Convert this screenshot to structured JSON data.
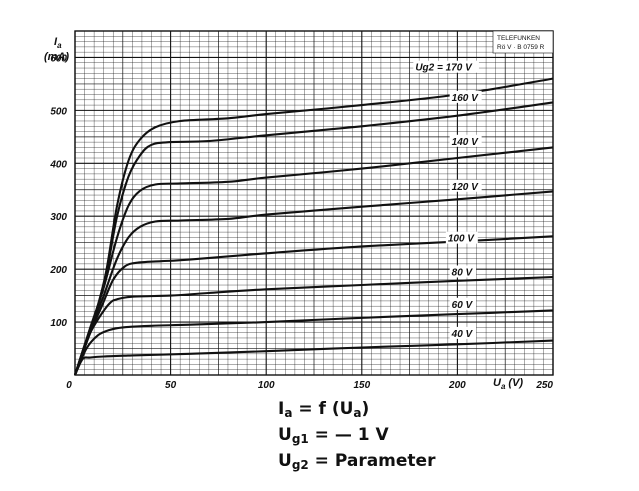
{
  "chart_data": {
    "type": "line",
    "title": "",
    "stamp": [
      "TELEFUNKEN",
      "Rö V · B 0759 R"
    ],
    "xlabel": "U",
    "xlabel_sub": "a",
    "xlabel_unit": "(V)",
    "ylabel": "I",
    "ylabel_sub": "a",
    "ylabel_unit": "(mA)",
    "xlim": [
      0,
      250
    ],
    "ylim": [
      0,
      650
    ],
    "xticks": [
      0,
      50,
      100,
      150,
      200,
      250
    ],
    "yticks": [
      100,
      200,
      300,
      400,
      500,
      600
    ],
    "grid": true,
    "series": [
      {
        "name": "40 V",
        "label_prefix": "",
        "points": [
          [
            0,
            0
          ],
          [
            4,
            30
          ],
          [
            8,
            33
          ],
          [
            15,
            35
          ],
          [
            30,
            37
          ],
          [
            60,
            40
          ],
          [
            100,
            45
          ],
          [
            150,
            52
          ],
          [
            200,
            58
          ],
          [
            250,
            65
          ]
        ]
      },
      {
        "name": "60 V",
        "label_prefix": "",
        "points": [
          [
            0,
            0
          ],
          [
            6,
            50
          ],
          [
            12,
            75
          ],
          [
            18,
            85
          ],
          [
            25,
            90
          ],
          [
            40,
            93
          ],
          [
            60,
            95
          ],
          [
            100,
            100
          ],
          [
            150,
            108
          ],
          [
            200,
            115
          ],
          [
            250,
            122
          ]
        ]
      },
      {
        "name": "80 V",
        "label_prefix": "",
        "points": [
          [
            0,
            0
          ],
          [
            6,
            65
          ],
          [
            12,
            105
          ],
          [
            18,
            135
          ],
          [
            22,
            143
          ],
          [
            30,
            148
          ],
          [
            50,
            150
          ],
          [
            70,
            155
          ],
          [
            100,
            162
          ],
          [
            150,
            170
          ],
          [
            200,
            178
          ],
          [
            250,
            185
          ]
        ]
      },
      {
        "name": "100 V",
        "label_prefix": "",
        "points": [
          [
            0,
            0
          ],
          [
            8,
            80
          ],
          [
            14,
            130
          ],
          [
            20,
            180
          ],
          [
            26,
            205
          ],
          [
            32,
            212
          ],
          [
            45,
            215
          ],
          [
            60,
            218
          ],
          [
            100,
            230
          ],
          [
            150,
            243
          ],
          [
            200,
            252
          ],
          [
            250,
            262
          ]
        ]
      },
      {
        "name": "120 V",
        "label_prefix": "",
        "points": [
          [
            0,
            0
          ],
          [
            8,
            85
          ],
          [
            15,
            150
          ],
          [
            22,
            220
          ],
          [
            28,
            260
          ],
          [
            34,
            280
          ],
          [
            42,
            290
          ],
          [
            55,
            292
          ],
          [
            80,
            295
          ],
          [
            100,
            303
          ],
          [
            150,
            318
          ],
          [
            200,
            332
          ],
          [
            250,
            347
          ]
        ]
      },
      {
        "name": "140 V",
        "label_prefix": "",
        "points": [
          [
            0,
            0
          ],
          [
            8,
            90
          ],
          [
            15,
            165
          ],
          [
            22,
            260
          ],
          [
            28,
            320
          ],
          [
            34,
            348
          ],
          [
            42,
            360
          ],
          [
            55,
            362
          ],
          [
            80,
            365
          ],
          [
            100,
            373
          ],
          [
            150,
            390
          ],
          [
            200,
            410
          ],
          [
            250,
            430
          ]
        ]
      },
      {
        "name": "160 V",
        "label_prefix": "",
        "points": [
          [
            0,
            0
          ],
          [
            9,
            95
          ],
          [
            16,
            185
          ],
          [
            22,
            300
          ],
          [
            28,
            375
          ],
          [
            34,
            415
          ],
          [
            40,
            435
          ],
          [
            50,
            440
          ],
          [
            70,
            442
          ],
          [
            100,
            453
          ],
          [
            150,
            470
          ],
          [
            200,
            490
          ],
          [
            250,
            515
          ]
        ]
      },
      {
        "name": "170 V",
        "label_prefix": "Ug2 =",
        "points": [
          [
            0,
            0
          ],
          [
            9,
            95
          ],
          [
            16,
            190
          ],
          [
            22,
            320
          ],
          [
            28,
            405
          ],
          [
            34,
            445
          ],
          [
            42,
            468
          ],
          [
            55,
            480
          ],
          [
            80,
            485
          ],
          [
            100,
            493
          ],
          [
            150,
            510
          ],
          [
            200,
            530
          ],
          [
            250,
            560
          ]
        ]
      }
    ],
    "curve_labels": [
      {
        "text": "40 V",
        "x": 197,
        "y": 72
      },
      {
        "text": "60 V",
        "x": 197,
        "y": 127
      },
      {
        "text": "80 V",
        "x": 197,
        "y": 188
      },
      {
        "text": "100 V",
        "x": 195,
        "y": 252
      },
      {
        "text": "120 V",
        "x": 197,
        "y": 350
      },
      {
        "text": "140 V",
        "x": 197,
        "y": 435
      },
      {
        "text": "160 V",
        "x": 197,
        "y": 518
      },
      {
        "text": "Ug2 = 170 V",
        "x": 178,
        "y": 575
      }
    ]
  },
  "formulas": [
    {
      "lhs": "I",
      "sub": "a",
      "rhs": "= f (U",
      "rhs_sub": "a",
      "rhs_end": ")"
    },
    {
      "lhs": "U",
      "sub": "g1",
      "rhs": "= — 1 V",
      "rhs_sub": "",
      "rhs_end": ""
    },
    {
      "lhs": "U",
      "sub": "g2",
      "rhs": "= Parameter",
      "rhs_sub": "",
      "rhs_end": ""
    }
  ]
}
